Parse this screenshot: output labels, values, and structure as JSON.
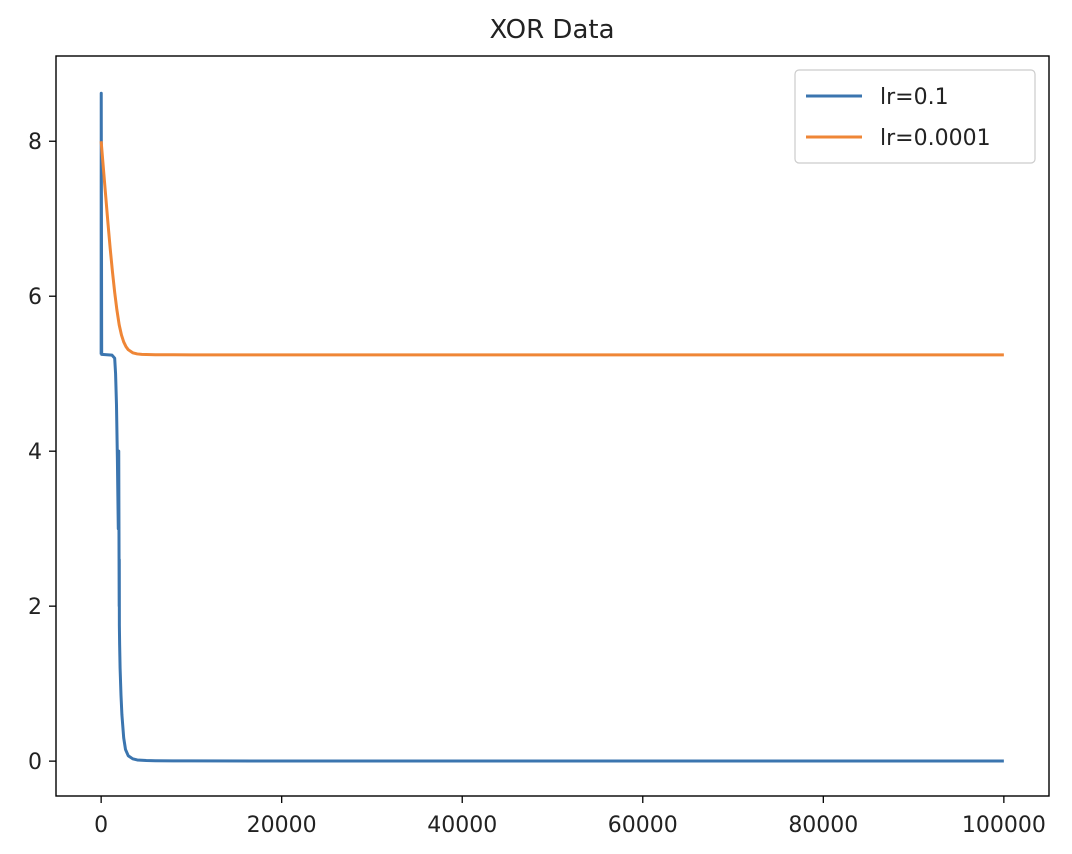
{
  "chart_data": {
    "type": "line",
    "title": "XOR Data",
    "xlabel": "",
    "ylabel": "",
    "xlim": [
      -5000,
      105000
    ],
    "ylim": [
      -0.45,
      9.1
    ],
    "x_ticks": [
      0,
      20000,
      40000,
      60000,
      80000,
      100000
    ],
    "x_tick_labels": [
      "0",
      "20000",
      "40000",
      "60000",
      "80000",
      "100000"
    ],
    "y_ticks": [
      0,
      2,
      4,
      6,
      8
    ],
    "y_tick_labels": [
      "0",
      "2",
      "4",
      "6",
      "8"
    ],
    "grid": false,
    "legend_position": "top-right",
    "series": [
      {
        "name": "lr=0.1",
        "color": "#3b75af",
        "x": [
          0,
          10,
          60,
          1200,
          1500,
          1600,
          1700,
          1800,
          1900,
          1950,
          2000,
          2010,
          2020,
          2050,
          2100,
          2200,
          2300,
          2500,
          2700,
          3000,
          3500,
          4000,
          5000,
          6000,
          8000,
          10000,
          20000,
          40000,
          60000,
          80000,
          100000
        ],
        "y": [
          5.25,
          8.62,
          5.25,
          5.24,
          5.2,
          5.0,
          4.6,
          3.9,
          3.0,
          4.0,
          2.0,
          2.6,
          1.75,
          1.5,
          1.2,
          0.85,
          0.6,
          0.3,
          0.15,
          0.07,
          0.03,
          0.015,
          0.008,
          0.005,
          0.004,
          0.003,
          0.002,
          0.001,
          0.001,
          0.001,
          0.001
        ]
      },
      {
        "name": "lr=0.0001",
        "color": "#ef8636",
        "x": [
          0,
          250,
          500,
          750,
          1000,
          1250,
          1500,
          1750,
          2000,
          2250,
          2500,
          2750,
          3000,
          3500,
          4000,
          4500,
          5000,
          6000,
          8000,
          10000,
          20000,
          40000,
          60000,
          80000,
          100000
        ],
        "y": [
          8.0,
          7.65,
          7.3,
          6.95,
          6.62,
          6.32,
          6.05,
          5.82,
          5.63,
          5.5,
          5.41,
          5.35,
          5.31,
          5.27,
          5.255,
          5.25,
          5.248,
          5.245,
          5.244,
          5.243,
          5.243,
          5.243,
          5.243,
          5.243,
          5.243
        ]
      }
    ]
  }
}
